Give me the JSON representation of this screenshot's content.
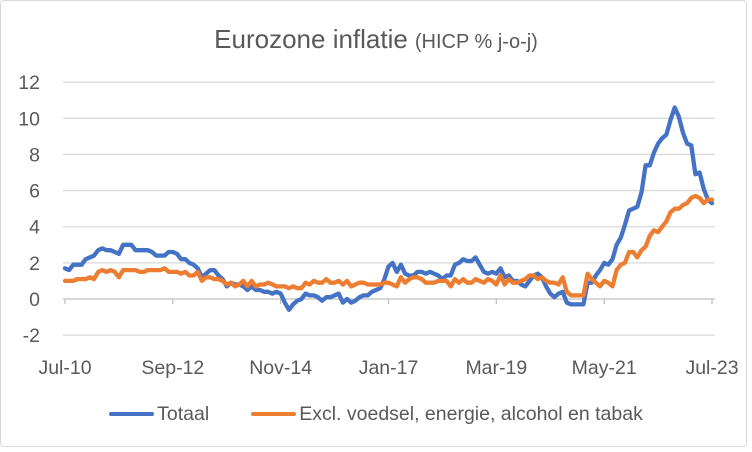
{
  "title": {
    "main": "Eurozone inflatie",
    "sub": "(HICP % j-o-j)"
  },
  "axis_style": {
    "text_color": "#595959",
    "gridline_color": "#D9D9D9",
    "axis_line_color": "#BFBFBF",
    "frame_border_color": "#D9D9D9"
  },
  "chart_data": {
    "type": "line",
    "title": "Eurozone inflatie (HICP % j-o-j)",
    "x_start": "Jul-2010",
    "x_end": "Jul-2023",
    "x_frequency": "monthly",
    "x_tick_labels": [
      "Jul-10",
      "Sep-12",
      "Nov-14",
      "Jan-17",
      "Mar-19",
      "May-21",
      "Jul-23"
    ],
    "y_ticks": [
      -2,
      0,
      2,
      4,
      6,
      8,
      10,
      12
    ],
    "ylim": [
      -2,
      12
    ],
    "grid": "horizontal",
    "legend_position": "bottom",
    "series": [
      {
        "name": "Totaal",
        "color": "#4472C4",
        "values": [
          1.7,
          1.6,
          1.9,
          1.9,
          1.9,
          2.2,
          2.3,
          2.4,
          2.7,
          2.8,
          2.7,
          2.7,
          2.6,
          2.5,
          3.0,
          3.0,
          3.0,
          2.7,
          2.7,
          2.7,
          2.7,
          2.6,
          2.4,
          2.4,
          2.4,
          2.6,
          2.6,
          2.5,
          2.2,
          2.2,
          2.0,
          1.9,
          1.7,
          1.2,
          1.4,
          1.6,
          1.6,
          1.3,
          1.1,
          0.7,
          0.9,
          0.8,
          0.8,
          0.7,
          0.5,
          0.7,
          0.5,
          0.5,
          0.4,
          0.4,
          0.3,
          0.4,
          0.3,
          -0.2,
          -0.6,
          -0.3,
          -0.1,
          0.0,
          0.3,
          0.2,
          0.2,
          0.1,
          -0.1,
          0.1,
          0.1,
          0.2,
          0.3,
          -0.2,
          0.0,
          -0.2,
          -0.1,
          0.1,
          0.2,
          0.2,
          0.4,
          0.5,
          0.6,
          1.1,
          1.8,
          2.0,
          1.5,
          1.9,
          1.4,
          1.3,
          1.3,
          1.5,
          1.5,
          1.4,
          1.5,
          1.4,
          1.3,
          1.1,
          1.3,
          1.3,
          1.9,
          2.0,
          2.2,
          2.1,
          2.1,
          2.3,
          1.9,
          1.5,
          1.4,
          1.5,
          1.4,
          1.7,
          1.2,
          1.3,
          1.0,
          1.0,
          0.8,
          0.7,
          1.0,
          1.3,
          1.4,
          1.2,
          0.7,
          0.3,
          0.1,
          0.3,
          0.4,
          -0.2,
          -0.3,
          -0.3,
          -0.3,
          -0.3,
          0.9,
          0.9,
          1.3,
          1.6,
          2.0,
          1.9,
          2.2,
          3.0,
          3.4,
          4.1,
          4.9,
          5.0,
          5.1,
          5.9,
          7.4,
          7.4,
          8.1,
          8.6,
          8.9,
          9.1,
          9.9,
          10.6,
          10.1,
          9.2,
          8.6,
          8.5,
          6.9,
          7.0,
          6.1,
          5.5,
          5.3
        ]
      },
      {
        "name": "Excl. voedsel, energie, alcohol en tabak",
        "color": "#ED7D31",
        "values": [
          1.0,
          1.0,
          1.0,
          1.1,
          1.1,
          1.1,
          1.2,
          1.1,
          1.5,
          1.6,
          1.5,
          1.6,
          1.5,
          1.2,
          1.6,
          1.6,
          1.6,
          1.6,
          1.5,
          1.5,
          1.6,
          1.6,
          1.6,
          1.6,
          1.7,
          1.5,
          1.5,
          1.5,
          1.4,
          1.5,
          1.3,
          1.3,
          1.5,
          1.0,
          1.2,
          1.2,
          1.1,
          1.1,
          1.0,
          0.8,
          0.9,
          0.7,
          0.8,
          1.0,
          0.7,
          1.0,
          0.7,
          0.8,
          0.8,
          0.9,
          0.8,
          0.7,
          0.7,
          0.7,
          0.6,
          0.7,
          0.6,
          0.6,
          0.9,
          0.8,
          1.0,
          0.9,
          0.9,
          1.1,
          0.9,
          0.9,
          1.0,
          0.8,
          1.0,
          0.7,
          0.8,
          0.9,
          0.9,
          0.8,
          0.8,
          0.8,
          0.8,
          0.9,
          0.9,
          0.8,
          0.7,
          1.2,
          0.9,
          1.1,
          1.2,
          1.2,
          1.1,
          0.9,
          0.9,
          0.9,
          1.0,
          1.0,
          1.0,
          0.7,
          1.1,
          0.9,
          1.1,
          0.9,
          0.9,
          1.1,
          1.0,
          0.9,
          1.1,
          1.0,
          0.8,
          1.3,
          0.8,
          1.1,
          0.9,
          0.9,
          1.0,
          1.1,
          1.3,
          1.3,
          1.1,
          1.2,
          1.0,
          0.9,
          0.9,
          0.8,
          1.2,
          0.4,
          0.2,
          0.2,
          0.2,
          0.2,
          1.4,
          1.1,
          0.9,
          0.7,
          1.0,
          0.9,
          0.7,
          1.6,
          1.9,
          2.0,
          2.6,
          2.6,
          2.3,
          2.7,
          2.9,
          3.5,
          3.8,
          3.7,
          4.0,
          4.3,
          4.8,
          5.0,
          5.0,
          5.2,
          5.3,
          5.6,
          5.7,
          5.6,
          5.3,
          5.5,
          5.5
        ]
      }
    ]
  }
}
